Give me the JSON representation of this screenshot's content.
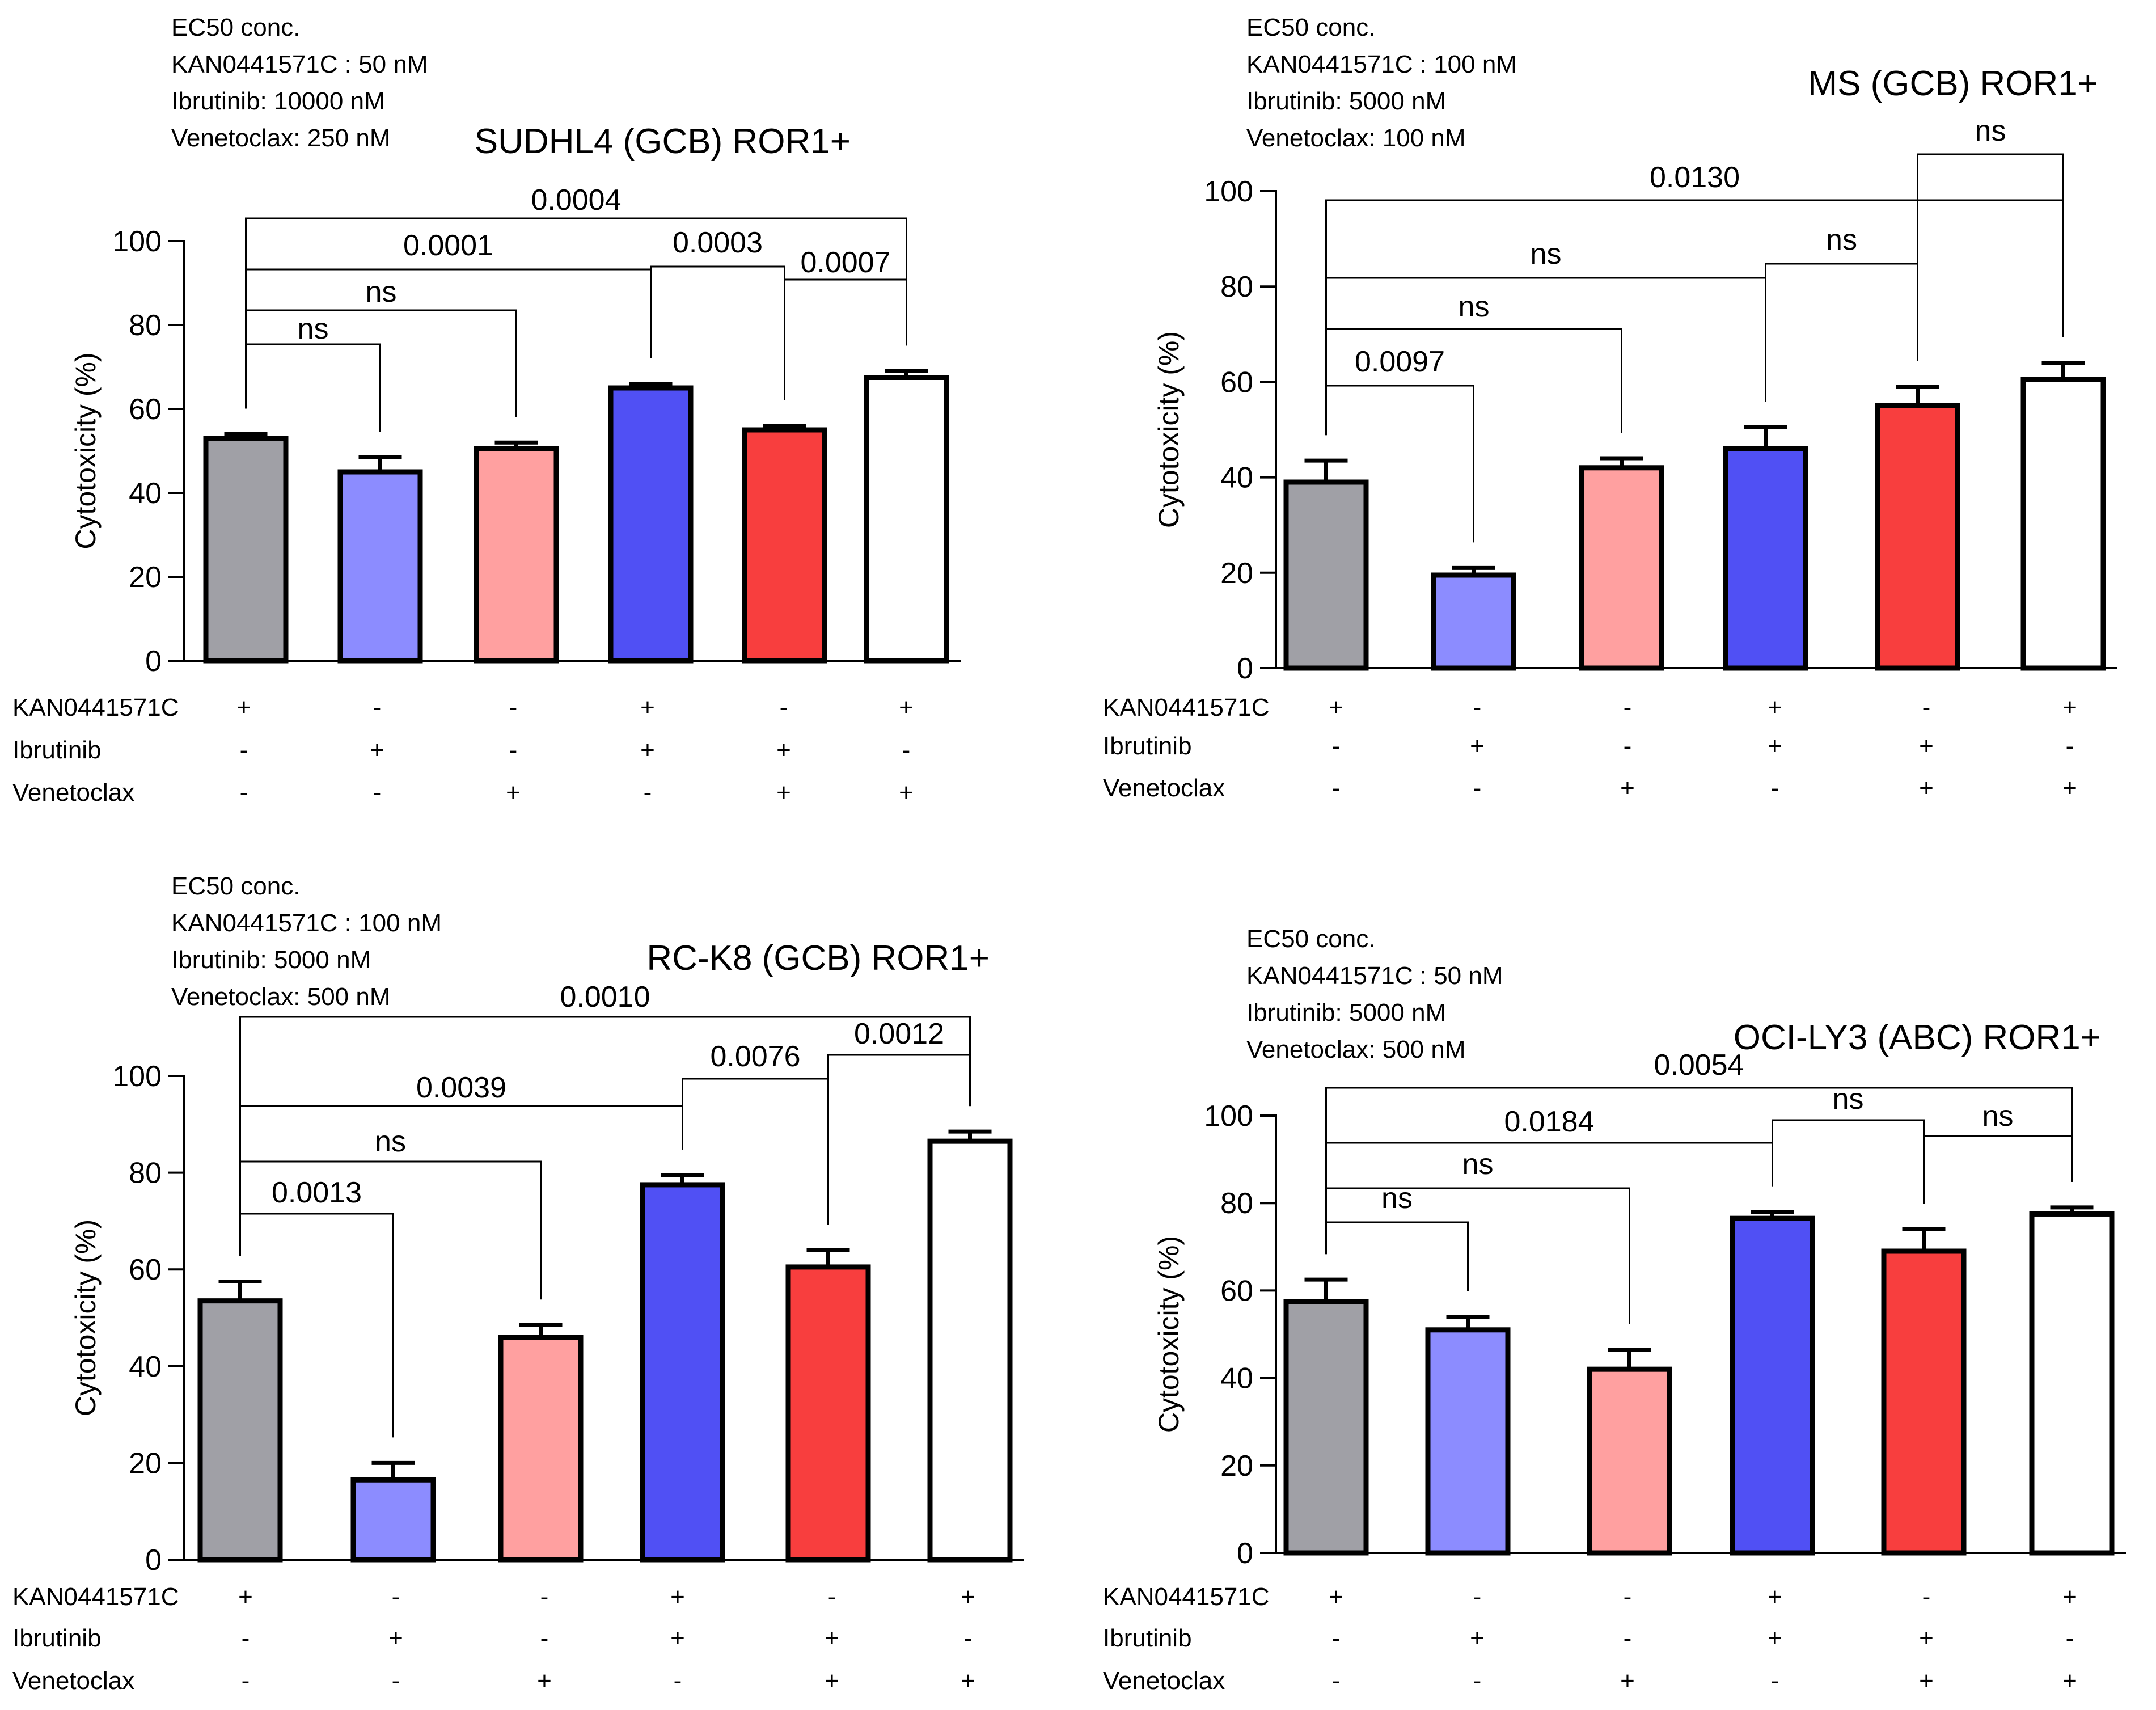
{
  "chart_data": [
    {
      "type": "bar",
      "title": "SUDHL4 (GCB) ROR1+",
      "info": [
        "EC50 conc.",
        "KAN0441571C : 50 nM",
        "Ibrutinib: 10000 nM",
        "Venetoclax: 250 nM"
      ],
      "ylabel": "Cytotoxicity (%)",
      "ylim": [
        0,
        100
      ],
      "yticks": [
        "0",
        "20",
        "40",
        "60",
        "80",
        "100"
      ],
      "values": [
        53,
        45,
        50.5,
        65,
        55,
        67.5
      ],
      "errors": [
        1,
        3.5,
        1.5,
        1,
        1,
        1.5
      ],
      "rows": [
        {
          "label": "KAN0441571C",
          "signs": [
            "+",
            "-",
            "-",
            "+",
            "-",
            "+"
          ]
        },
        {
          "label": "Ibrutinib",
          "signs": [
            "-",
            "+",
            "-",
            "+",
            "+",
            "-"
          ]
        },
        {
          "label": "Venetoclax",
          "signs": [
            "-",
            "-",
            "+",
            "-",
            "+",
            "+"
          ]
        }
      ],
      "comparisons": [
        {
          "a": 0,
          "b": 1,
          "label": "ns"
        },
        {
          "a": 0,
          "b": 2,
          "label": "ns"
        },
        {
          "a": 0,
          "b": 3,
          "label": "0.0001"
        },
        {
          "a": 3,
          "b": 4,
          "label": "0.0003"
        },
        {
          "a": 4,
          "b": 5,
          "label": "0.0007"
        },
        {
          "a": 0,
          "b": 5,
          "label": "0.0004"
        }
      ]
    },
    {
      "type": "bar",
      "title": "MS (GCB) ROR1+",
      "info": [
        "EC50 conc.",
        "KAN0441571C : 100 nM",
        "Ibrutinib: 5000 nM",
        "Venetoclax: 100 nM"
      ],
      "ylabel": "Cytotoxicity (%)",
      "ylim": [
        0,
        100
      ],
      "yticks": [
        "0",
        "20",
        "40",
        "60",
        "80",
        "100"
      ],
      "values": [
        39,
        19.5,
        42,
        46,
        55,
        60.5
      ],
      "errors": [
        4.5,
        1.5,
        2,
        4.5,
        4,
        3.5
      ],
      "rows": [
        {
          "label": "KAN0441571C",
          "signs": [
            "+",
            "-",
            "-",
            "+",
            "-",
            "+"
          ]
        },
        {
          "label": "Ibrutinib",
          "signs": [
            "-",
            "+",
            "-",
            "+",
            "+",
            "-"
          ]
        },
        {
          "label": "Venetoclax",
          "signs": [
            "-",
            "-",
            "+",
            "-",
            "+",
            "+"
          ]
        }
      ],
      "comparisons": [
        {
          "a": 0,
          "b": 1,
          "label": "0.0097"
        },
        {
          "a": 0,
          "b": 2,
          "label": "ns"
        },
        {
          "a": 0,
          "b": 3,
          "label": "ns"
        },
        {
          "a": 3,
          "b": 4,
          "label": "ns"
        },
        {
          "a": 0,
          "b": 5,
          "label": "0.0130"
        },
        {
          "a": 4,
          "b": 5,
          "label": "ns"
        }
      ]
    },
    {
      "type": "bar",
      "title": "RC-K8 (GCB) ROR1+",
      "info": [
        "EC50 conc.",
        "KAN0441571C : 100 nM",
        "Ibrutinib: 5000 nM",
        "Venetoclax: 500 nM"
      ],
      "ylabel": "Cytotoxicity (%)",
      "ylim": [
        0,
        100
      ],
      "yticks": [
        "0",
        "20",
        "40",
        "60",
        "80",
        "100"
      ],
      "values": [
        53.5,
        16.5,
        46,
        77.5,
        60.5,
        86.5
      ],
      "errors": [
        4,
        3.5,
        2.5,
        2,
        3.5,
        2
      ],
      "rows": [
        {
          "label": "KAN0441571C",
          "signs": [
            "+",
            "-",
            "-",
            "+",
            "-",
            "+"
          ]
        },
        {
          "label": "Ibrutinib",
          "signs": [
            "-",
            "+",
            "-",
            "+",
            "+",
            "-"
          ]
        },
        {
          "label": "Venetoclax",
          "signs": [
            "-",
            "-",
            "+",
            "-",
            "+",
            "+"
          ]
        }
      ],
      "comparisons": [
        {
          "a": 0,
          "b": 1,
          "label": "0.0013"
        },
        {
          "a": 0,
          "b": 2,
          "label": "ns"
        },
        {
          "a": 0,
          "b": 3,
          "label": "0.0039"
        },
        {
          "a": 3,
          "b": 4,
          "label": "0.0076"
        },
        {
          "a": 4,
          "b": 5,
          "label": "0.0012"
        },
        {
          "a": 0,
          "b": 5,
          "label": "0.0010"
        }
      ]
    },
    {
      "type": "bar",
      "title": "OCI-LY3 (ABC) ROR1+",
      "info": [
        "EC50 conc.",
        "KAN0441571C : 50 nM",
        "Ibrutinib: 5000 nM",
        "Venetoclax: 500 nM"
      ],
      "ylabel": "Cytotoxicity (%)",
      "ylim": [
        0,
        100
      ],
      "yticks": [
        "0",
        "20",
        "40",
        "60",
        "80",
        "100"
      ],
      "values": [
        57.5,
        51,
        42,
        76.5,
        69,
        77.5
      ],
      "errors": [
        5,
        3,
        4.5,
        1.5,
        5,
        1.5
      ],
      "rows": [
        {
          "label": "KAN0441571C",
          "signs": [
            "+",
            "-",
            "-",
            "+",
            "-",
            "+"
          ]
        },
        {
          "label": "Ibrutinib",
          "signs": [
            "-",
            "+",
            "-",
            "+",
            "+",
            "-"
          ]
        },
        {
          "label": "Venetoclax",
          "signs": [
            "-",
            "-",
            "+",
            "-",
            "+",
            "+"
          ]
        }
      ],
      "comparisons": [
        {
          "a": 0,
          "b": 1,
          "label": "ns"
        },
        {
          "a": 0,
          "b": 2,
          "label": "ns"
        },
        {
          "a": 0,
          "b": 3,
          "label": "0.0184"
        },
        {
          "a": 3,
          "b": 4,
          "label": "ns"
        },
        {
          "a": 4,
          "b": 5,
          "label": "ns"
        },
        {
          "a": 0,
          "b": 5,
          "label": "0.0054"
        }
      ]
    }
  ],
  "colors": {
    "bars": [
      "#a0a0a6",
      "#8c8cff",
      "#ffa0a0",
      "#5050f4",
      "#f83e3e",
      "#ffffff"
    ],
    "stroke": "#000000"
  }
}
